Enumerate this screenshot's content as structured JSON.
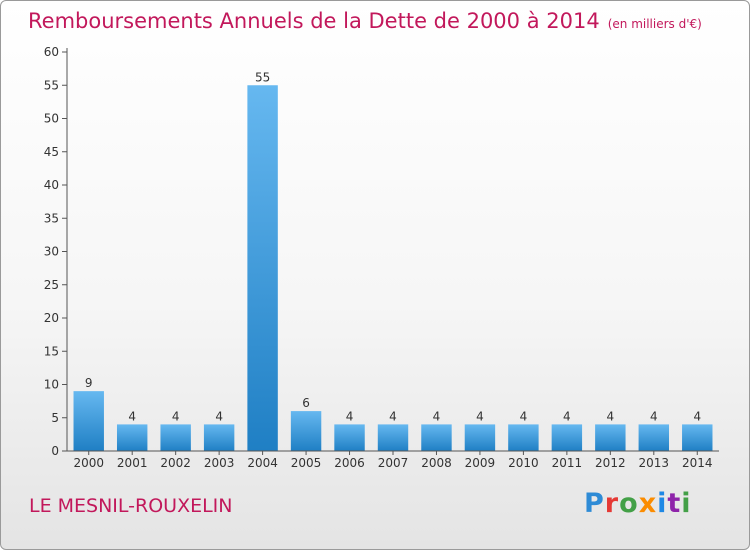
{
  "title": "Remboursements Annuels de la Dette de 2000 à 2014",
  "unit": "(en milliers d'€)",
  "commune": "LE MESNIL-ROUXELIN",
  "logo": {
    "text": "Proxiti",
    "letters": [
      {
        "ch": "P",
        "color": "#2e8bd6"
      },
      {
        "ch": "r",
        "color": "#e53935"
      },
      {
        "ch": "o",
        "color": "#43a047"
      },
      {
        "ch": "x",
        "color": "#fb8c00"
      },
      {
        "ch": "i",
        "color": "#1e88e5"
      },
      {
        "ch": "t",
        "color": "#8e24aa"
      },
      {
        "ch": "i",
        "color": "#43a047"
      }
    ]
  },
  "colors": {
    "bar": "#3a9ee0",
    "bar_light": "#66b8f0",
    "bar_dark": "#1f7fc4",
    "title": "#c2185b",
    "axis": "#555555"
  },
  "chart_data": {
    "type": "bar",
    "categories": [
      "2000",
      "2001",
      "2002",
      "2003",
      "2004",
      "2005",
      "2006",
      "2007",
      "2008",
      "2009",
      "2010",
      "2011",
      "2012",
      "2013",
      "2014"
    ],
    "values": [
      9,
      4,
      4,
      4,
      55,
      6,
      4,
      4,
      4,
      4,
      4,
      4,
      4,
      4,
      4
    ],
    "ylim": [
      0,
      60
    ],
    "yticks": [
      0,
      5,
      10,
      15,
      20,
      25,
      30,
      35,
      40,
      45,
      50,
      55,
      60
    ],
    "grid": false,
    "data_labels": true
  }
}
